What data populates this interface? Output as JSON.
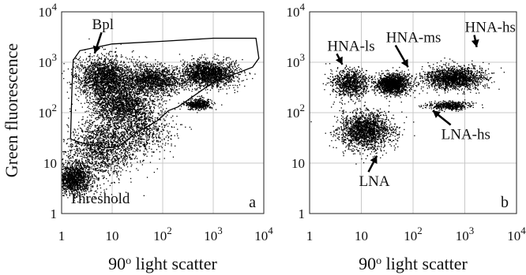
{
  "figure": {
    "ylabel": "Green fluorescence"
  },
  "chart_data": [
    {
      "type": "scatter",
      "panel_letter": "a",
      "xlabel_base": "90",
      "xlabel_sup": "o",
      "xlabel_rest": " light scatter",
      "x_scale": "log",
      "y_scale": "log",
      "xlim": [
        1,
        10000
      ],
      "ylim": [
        1,
        10000
      ],
      "x_ticks": [
        {
          "value": 1,
          "base": "1",
          "exp": ""
        },
        {
          "value": 10,
          "base": "10",
          "exp": ""
        },
        {
          "value": 100,
          "base": "10",
          "exp": "2"
        },
        {
          "value": 1000,
          "base": "10",
          "exp": "3"
        },
        {
          "value": 10000,
          "base": "10",
          "exp": "4"
        }
      ],
      "y_ticks": [
        {
          "value": 1,
          "base": "1",
          "exp": ""
        },
        {
          "value": 10,
          "base": "10",
          "exp": ""
        },
        {
          "value": 100,
          "base": "10",
          "exp": "2"
        },
        {
          "value": 1000,
          "base": "10",
          "exp": "3"
        },
        {
          "value": 10000,
          "base": "10",
          "exp": "4"
        }
      ],
      "grid": true,
      "annotations": [
        {
          "text": "Bpl",
          "x": 4,
          "y": 4500,
          "arrow_to": [
            4.5,
            1500
          ]
        },
        {
          "text": "Threshold",
          "x": 1.4,
          "y": 1.6
        }
      ],
      "gate": {
        "name": "Bpl",
        "x": [
          1.5,
          1.6,
          1.7,
          2.3,
          10,
          100,
          1000,
          7000,
          8000,
          6000,
          1000,
          200,
          130,
          80,
          30,
          14,
          8,
          2.5,
          1.5
        ],
        "y": [
          30,
          300,
          1100,
          1700,
          2300,
          2600,
          3000,
          3000,
          1200,
          800,
          400,
          130,
          110,
          70,
          40,
          22,
          20,
          25,
          30
        ]
      },
      "clusters": [
        {
          "name": "threshold-corner",
          "cx": 1.7,
          "cy": 5,
          "sx": 0.18,
          "sy": 0.15,
          "n": 1400
        },
        {
          "name": "low-diagonal",
          "cx": 6,
          "cy": 20,
          "sx": 0.35,
          "sy": 0.3,
          "n": 1500
        },
        {
          "name": "band-low-left",
          "cx": 7,
          "cy": 500,
          "sx": 0.28,
          "sy": 0.2,
          "n": 2000
        },
        {
          "name": "band-low-right",
          "cx": 60,
          "cy": 450,
          "sx": 0.3,
          "sy": 0.14,
          "n": 1600
        },
        {
          "name": "band-high",
          "cx": 800,
          "cy": 600,
          "sx": 0.28,
          "sy": 0.13,
          "n": 1800
        },
        {
          "name": "mid-cluster",
          "cx": 15,
          "cy": 150,
          "sx": 0.3,
          "sy": 0.16,
          "n": 1400
        },
        {
          "name": "hs-small",
          "cx": 500,
          "cy": 150,
          "sx": 0.12,
          "sy": 0.05,
          "n": 500
        },
        {
          "name": "lna-diffuse",
          "cx": 30,
          "cy": 50,
          "sx": 0.35,
          "sy": 0.25,
          "n": 1000
        }
      ]
    },
    {
      "type": "scatter",
      "panel_letter": "b",
      "xlabel_base": "90",
      "xlabel_sup": "o",
      "xlabel_rest": " light scatter",
      "x_scale": "log",
      "y_scale": "log",
      "xlim": [
        1,
        10000
      ],
      "ylim": [
        1,
        10000
      ],
      "x_ticks": [
        {
          "value": 1,
          "base": "1",
          "exp": ""
        },
        {
          "value": 10,
          "base": "10",
          "exp": ""
        },
        {
          "value": 100,
          "base": "10",
          "exp": "2"
        },
        {
          "value": 1000,
          "base": "10",
          "exp": "3"
        },
        {
          "value": 10000,
          "base": "10",
          "exp": "4"
        }
      ],
      "y_ticks": [
        {
          "value": 1,
          "base": "1",
          "exp": ""
        },
        {
          "value": 10,
          "base": "10",
          "exp": ""
        },
        {
          "value": 100,
          "base": "10",
          "exp": "2"
        },
        {
          "value": 1000,
          "base": "10",
          "exp": "3"
        },
        {
          "value": 10000,
          "base": "10",
          "exp": "4"
        }
      ],
      "grid": true,
      "annotations": [
        {
          "text": "HNA-ls",
          "x": 2.2,
          "y": 1700,
          "arrow_to": [
            4.3,
            900
          ]
        },
        {
          "text": "HNA-ms",
          "x": 30,
          "y": 2500,
          "arrow_to": [
            80,
            800
          ]
        },
        {
          "text": "HNA-hs",
          "x": 1000,
          "y": 4000,
          "arrow_to": [
            1700,
            2000
          ]
        },
        {
          "text": "LNA-hs",
          "x": 350,
          "y": 30,
          "arrow_to": [
            240,
            110
          ]
        },
        {
          "text": "LNA",
          "x": 9,
          "y": 3.5,
          "arrow_to": [
            20,
            14
          ]
        }
      ],
      "clusters": [
        {
          "name": "HNA-ls",
          "cx": 6,
          "cy": 380,
          "sx": 0.18,
          "sy": 0.14,
          "n": 900
        },
        {
          "name": "HNA-ms",
          "cx": 40,
          "cy": 380,
          "sx": 0.16,
          "sy": 0.1,
          "n": 1600
        },
        {
          "name": "HNA-hs",
          "cx": 600,
          "cy": 500,
          "sx": 0.28,
          "sy": 0.11,
          "n": 1700
        },
        {
          "name": "LNA-hs",
          "cx": 500,
          "cy": 140,
          "sx": 0.2,
          "sy": 0.04,
          "n": 500
        },
        {
          "name": "LNA",
          "cx": 12,
          "cy": 45,
          "sx": 0.25,
          "sy": 0.18,
          "n": 1900
        }
      ]
    }
  ]
}
